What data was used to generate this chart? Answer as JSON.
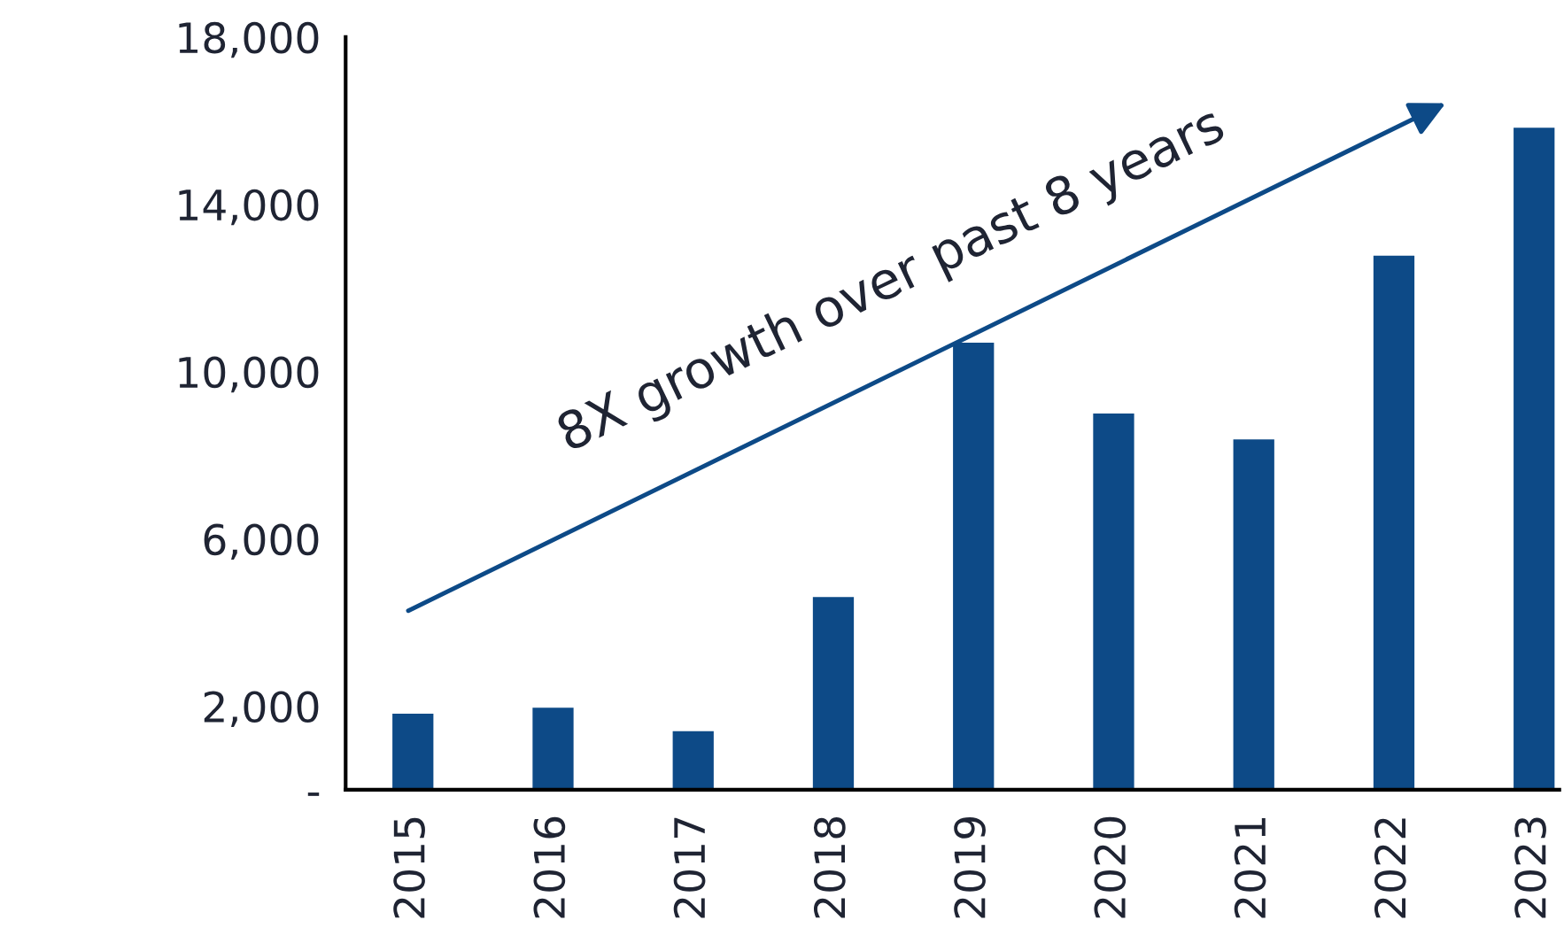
{
  "chart_data": {
    "type": "bar",
    "categories": [
      "2015",
      "2016",
      "2017",
      "2018",
      "2019",
      "2020",
      "2021",
      "2022",
      "2023"
    ],
    "values": [
      1850,
      1990,
      1430,
      4640,
      10720,
      9030,
      8410,
      12800,
      15860
    ],
    "color": "#0d4a87",
    "ylim": [
      0,
      18000
    ],
    "yticks": [
      {
        "value": 0,
        "label": "-"
      },
      {
        "value": 2000,
        "label": "2,000"
      },
      {
        "value": 6000,
        "label": "6,000"
      },
      {
        "value": 10000,
        "label": "10,000"
      },
      {
        "value": 14000,
        "label": "14,000"
      },
      {
        "value": 18000,
        "label": "18,000"
      }
    ],
    "annotations": [
      "8X growth over past 8 years"
    ],
    "grid": false,
    "legend": false
  }
}
